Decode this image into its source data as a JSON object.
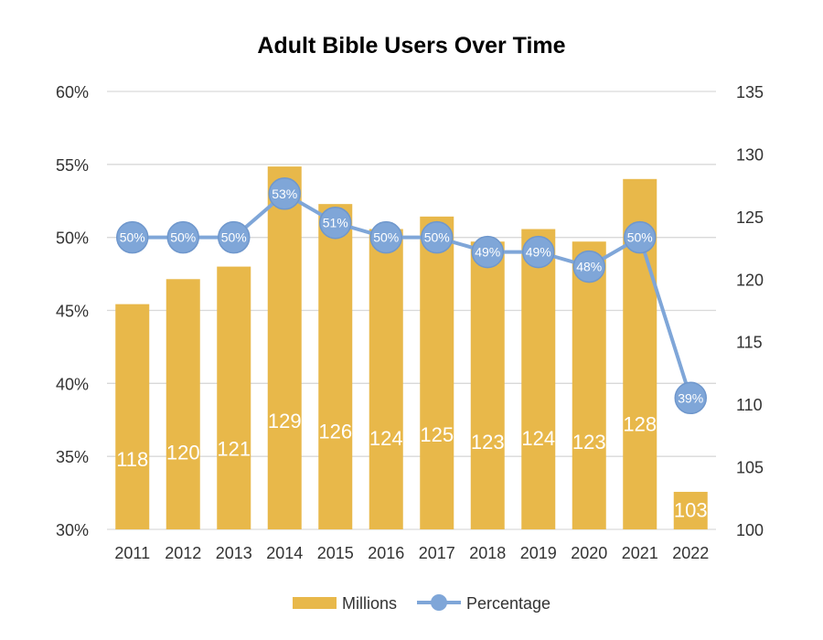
{
  "chart_data": {
    "type": "bar",
    "title": "Adult Bible Users Over Time",
    "categories": [
      "2011",
      "2012",
      "2013",
      "2014",
      "2015",
      "2016",
      "2017",
      "2018",
      "2019",
      "2020",
      "2021",
      "2022"
    ],
    "series": [
      {
        "name": "Millions",
        "type": "bar",
        "axis": "right",
        "values": [
          118,
          120,
          121,
          129,
          126,
          124,
          125,
          123,
          124,
          123,
          128,
          103
        ],
        "labels": [
          "118",
          "120",
          "121",
          "129",
          "126",
          "124",
          "125",
          "123",
          "124",
          "123",
          "128",
          "103"
        ],
        "color": "#E8B84A"
      },
      {
        "name": "Percentage",
        "type": "line",
        "axis": "left",
        "values": [
          50,
          50,
          50,
          53,
          51,
          50,
          50,
          49,
          49,
          48,
          50,
          39
        ],
        "labels": [
          "50%",
          "50%",
          "50%",
          "53%",
          "51%",
          "50%",
          "50%",
          "49%",
          "49%",
          "48%",
          "50%",
          "39%"
        ],
        "color": "#7FA6D8"
      }
    ],
    "y_left": {
      "min": 30,
      "max": 60,
      "ticks": [
        "60%",
        "55%",
        "50%",
        "45%",
        "40%",
        "35%",
        "30%"
      ]
    },
    "y_right": {
      "min": 100,
      "max": 135,
      "ticks": [
        "135",
        "130",
        "125",
        "120",
        "115",
        "110",
        "105",
        "100"
      ]
    },
    "grid": true,
    "legend_position": "bottom"
  }
}
